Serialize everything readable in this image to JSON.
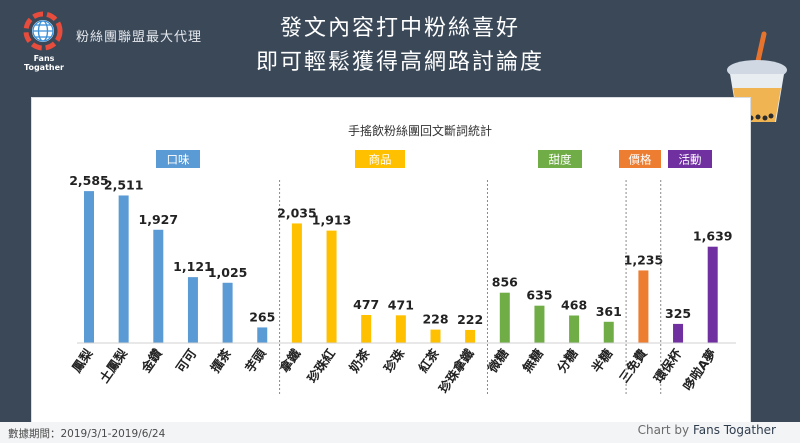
{
  "header": {
    "brand": "粉絲團聯盟最大代理",
    "logo_caption": "Fans Togather",
    "title_line1": "發文內容打中粉絲喜好",
    "title_line2": "即可輕鬆獲得高網路討論度"
  },
  "footer": {
    "period": "數據期間：2019/3/1-2019/6/24",
    "credit_prefix": "Chart by",
    "credit_name": "Fans Togather"
  },
  "chart_data": {
    "type": "bar",
    "title": "手搖飲粉絲團回文斷詞統計",
    "groups": [
      {
        "name": "口味",
        "color": "#5b9bd5",
        "categories": [
          "鳳梨",
          "土鳳梨",
          "金鑽",
          "可可",
          "擂茶",
          "芋頭"
        ],
        "values": [
          2585,
          2511,
          1927,
          1121,
          1025,
          265
        ]
      },
      {
        "name": "商品",
        "color": "#ffc000",
        "categories": [
          "拿鐵",
          "珍珠紅",
          "奶茶",
          "珍珠",
          "紅茶",
          "珍珠拿鐵"
        ],
        "values": [
          2035,
          1913,
          477,
          471,
          228,
          222
        ]
      },
      {
        "name": "甜度",
        "color": "#70ad47",
        "categories": [
          "微糖",
          "無糖",
          "分糖",
          "半糖"
        ],
        "values": [
          856,
          635,
          468,
          361
        ]
      },
      {
        "name": "價格",
        "color": "#ed7d31",
        "categories": [
          "三免費"
        ],
        "values": [
          1235
        ]
      },
      {
        "name": "活動",
        "color": "#7030a0",
        "categories": [
          "環保杯",
          "哆啦A夢"
        ],
        "values": [
          325,
          1639
        ]
      }
    ],
    "value_labels": [
      "2,585",
      "2,511",
      "1,927",
      "1,121",
      "1,025",
      "265",
      "2,035",
      "1,913",
      "477",
      "471",
      "228",
      "222",
      "856",
      "635",
      "468",
      "361",
      "1,235",
      "325",
      "1,639"
    ],
    "ylim": [
      0,
      2800
    ],
    "grid": false,
    "legend": "none"
  }
}
